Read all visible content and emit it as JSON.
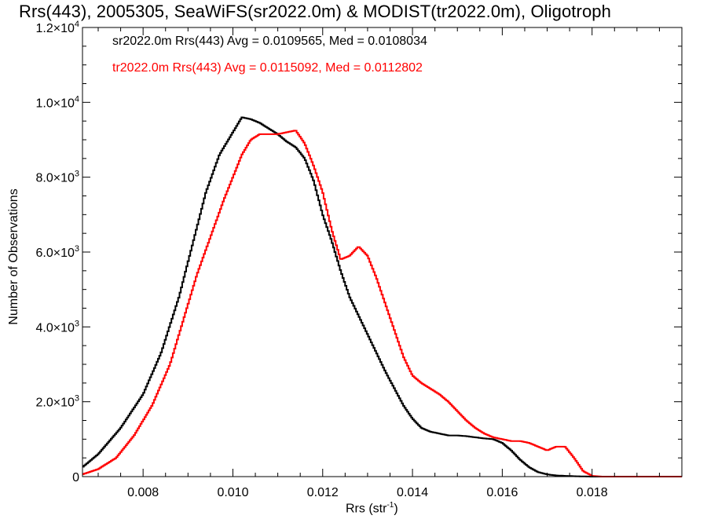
{
  "chart_data": {
    "type": "line",
    "style": "step-histogram",
    "title": "Rrs(443), 2005305, SeaWiFS(sr2022.0m) & MODIST(tr2022.0m), Oligotroph",
    "xlabel": "Rrs (str",
    "xlabel_sup": "-1",
    "xlabel_close": ")",
    "ylabel": "Number of Observations",
    "xlim": [
      0.00665,
      0.02
    ],
    "ylim": [
      0,
      12000
    ],
    "x_ticks": [
      0.008,
      0.01,
      0.012,
      0.014,
      0.016,
      0.018
    ],
    "x_tick_labels": [
      "0.008",
      "0.010",
      "0.012",
      "0.014",
      "0.016",
      "0.018"
    ],
    "y_ticks": [
      0,
      2000,
      4000,
      6000,
      8000,
      10000,
      12000
    ],
    "y_tick_labels": [
      {
        "base": "0",
        "exp": ""
      },
      {
        "base": "2.0×10",
        "exp": "3"
      },
      {
        "base": "4.0×10",
        "exp": "3"
      },
      {
        "base": "6.0×10",
        "exp": "3"
      },
      {
        "base": "8.0×10",
        "exp": "3"
      },
      {
        "base": "1.0×10",
        "exp": "4"
      },
      {
        "base": "1.2×10",
        "exp": "4"
      }
    ],
    "legend": [
      {
        "text": "sr2022.0m Rrs(443) Avg = 0.0109565, Med = 0.0108034",
        "color": "#000000"
      },
      {
        "text": "tr2022.0m Rrs(443) Avg = 0.0115092, Med = 0.0112802",
        "color": "#ff0000"
      }
    ],
    "legend_position": "top-left",
    "grid": false,
    "series": [
      {
        "color": "#000000",
        "points": [
          [
            0.00665,
            250
          ],
          [
            0.007,
            600
          ],
          [
            0.0075,
            1300
          ],
          [
            0.008,
            2200
          ],
          [
            0.0084,
            3300
          ],
          [
            0.0088,
            4800
          ],
          [
            0.0091,
            6200
          ],
          [
            0.0094,
            7600
          ],
          [
            0.0097,
            8600
          ],
          [
            0.01,
            9200
          ],
          [
            0.0102,
            9600
          ],
          [
            0.0104,
            9550
          ],
          [
            0.0106,
            9450
          ],
          [
            0.0108,
            9300
          ],
          [
            0.011,
            9150
          ],
          [
            0.0112,
            8950
          ],
          [
            0.0114,
            8800
          ],
          [
            0.0116,
            8500
          ],
          [
            0.0118,
            7900
          ],
          [
            0.012,
            7000
          ],
          [
            0.0122,
            6300
          ],
          [
            0.0124,
            5500
          ],
          [
            0.0126,
            4800
          ],
          [
            0.0128,
            4300
          ],
          [
            0.013,
            3800
          ],
          [
            0.0132,
            3300
          ],
          [
            0.0134,
            2800
          ],
          [
            0.0136,
            2350
          ],
          [
            0.0138,
            1900
          ],
          [
            0.014,
            1550
          ],
          [
            0.0142,
            1300
          ],
          [
            0.0144,
            1200
          ],
          [
            0.0146,
            1150
          ],
          [
            0.0148,
            1100
          ],
          [
            0.015,
            1100
          ],
          [
            0.0152,
            1080
          ],
          [
            0.0154,
            1050
          ],
          [
            0.0156,
            1020
          ],
          [
            0.0158,
            1000
          ],
          [
            0.016,
            900
          ],
          [
            0.0162,
            700
          ],
          [
            0.0164,
            450
          ],
          [
            0.0166,
            250
          ],
          [
            0.0168,
            120
          ],
          [
            0.017,
            60
          ],
          [
            0.0172,
            30
          ],
          [
            0.0176,
            10
          ],
          [
            0.018,
            0
          ],
          [
            0.02,
            0
          ]
        ]
      },
      {
        "color": "#ff0000",
        "points": [
          [
            0.00665,
            60
          ],
          [
            0.007,
            200
          ],
          [
            0.0074,
            500
          ],
          [
            0.0078,
            1100
          ],
          [
            0.0082,
            1900
          ],
          [
            0.0086,
            3000
          ],
          [
            0.0089,
            4200
          ],
          [
            0.0092,
            5400
          ],
          [
            0.0095,
            6400
          ],
          [
            0.0098,
            7400
          ],
          [
            0.01,
            8000
          ],
          [
            0.0102,
            8600
          ],
          [
            0.0104,
            9000
          ],
          [
            0.0106,
            9150
          ],
          [
            0.0108,
            9150
          ],
          [
            0.011,
            9150
          ],
          [
            0.0112,
            9200
          ],
          [
            0.0114,
            9250
          ],
          [
            0.0116,
            8900
          ],
          [
            0.0118,
            8300
          ],
          [
            0.012,
            7600
          ],
          [
            0.0122,
            6600
          ],
          [
            0.0124,
            5800
          ],
          [
            0.0126,
            5900
          ],
          [
            0.0128,
            6150
          ],
          [
            0.013,
            5900
          ],
          [
            0.0132,
            5300
          ],
          [
            0.0134,
            4600
          ],
          [
            0.0136,
            3900
          ],
          [
            0.0138,
            3200
          ],
          [
            0.014,
            2700
          ],
          [
            0.0142,
            2500
          ],
          [
            0.0144,
            2350
          ],
          [
            0.0146,
            2200
          ],
          [
            0.0148,
            2000
          ],
          [
            0.015,
            1750
          ],
          [
            0.0152,
            1500
          ],
          [
            0.0154,
            1300
          ],
          [
            0.0156,
            1150
          ],
          [
            0.0158,
            1050
          ],
          [
            0.016,
            1000
          ],
          [
            0.0162,
            950
          ],
          [
            0.0164,
            950
          ],
          [
            0.0166,
            900
          ],
          [
            0.0168,
            800
          ],
          [
            0.017,
            700
          ],
          [
            0.0172,
            800
          ],
          [
            0.0174,
            800
          ],
          [
            0.0176,
            500
          ],
          [
            0.0178,
            150
          ],
          [
            0.018,
            20
          ],
          [
            0.0182,
            0
          ],
          [
            0.02,
            0
          ]
        ]
      }
    ]
  }
}
